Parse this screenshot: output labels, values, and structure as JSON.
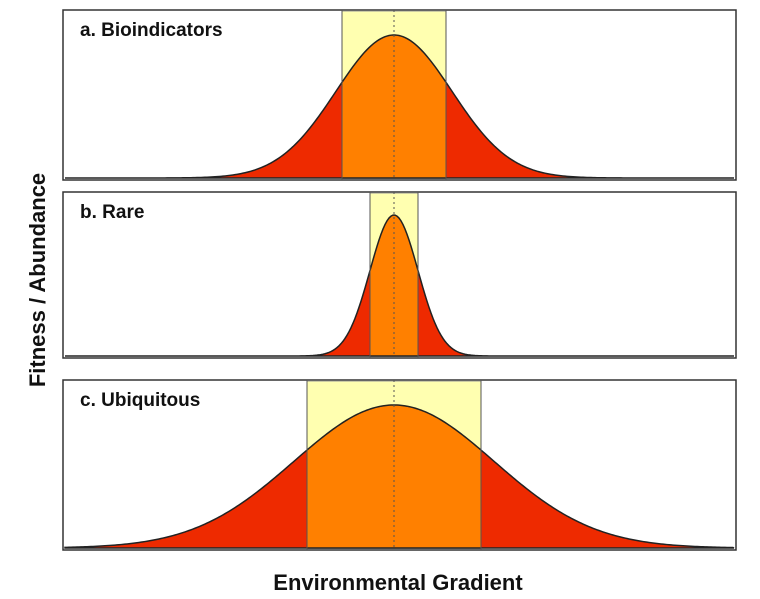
{
  "panels": [
    {
      "label": "a. Bioindicators"
    },
    {
      "label": "b. Rare"
    },
    {
      "label": "c. Ubiquitous"
    }
  ],
  "y_axis_label": "Fitness / Abundance",
  "x_axis_label": "Environmental Gradient"
}
